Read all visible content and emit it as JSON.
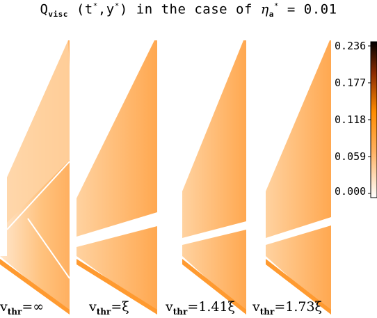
{
  "title": {
    "q_main": "Q",
    "q_sub": "visc",
    "args": "(t",
    "star1": "*",
    "mid": ",y",
    "star2": "*",
    "rest1": ") in the case of ",
    "eta": "η",
    "eta_sub": "a",
    "eta_star": "*",
    "rest2": " = 0.01"
  },
  "panels": [
    {
      "v": "v",
      "sub": "thr",
      "value": "=∞"
    },
    {
      "v": "v",
      "sub": "thr",
      "value": "=ξ"
    },
    {
      "v": "v",
      "sub": "thr",
      "value": "=1.41ξ"
    },
    {
      "v": "v",
      "sub": "thr",
      "value": "=1.73ξ"
    }
  ],
  "chart_data": {
    "type": "heatmap",
    "colorbar": {
      "ticks": [
        "0.236",
        "0.177",
        "0.118",
        "0.059",
        "0.000"
      ],
      "range": [
        0.0,
        0.236
      ],
      "colors": [
        "#ffffff",
        "#ff8c00",
        "#7a1a00",
        "#000000"
      ]
    }
  }
}
